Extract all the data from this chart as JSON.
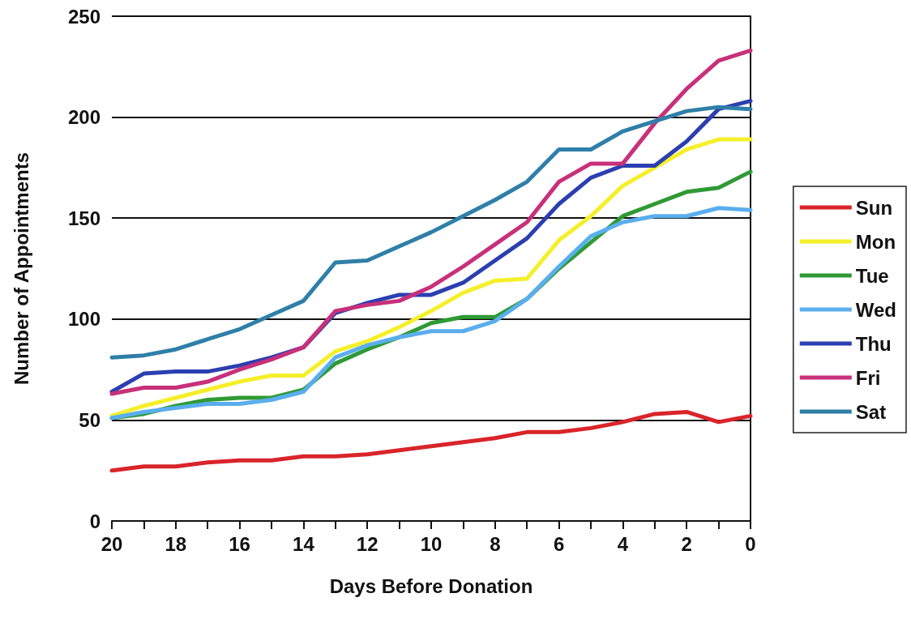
{
  "chart_data": {
    "type": "line",
    "xlabel": "Days Before Donation",
    "ylabel": "Number of Appointments",
    "x": [
      20,
      19,
      18,
      17,
      16,
      15,
      14,
      13,
      12,
      11,
      10,
      9,
      8,
      7,
      6,
      5,
      4,
      3,
      2,
      1,
      0
    ],
    "xlim": [
      20,
      0
    ],
    "xticks": [
      20,
      {
        "value": 19,
        "label": null
      },
      18,
      {
        "value": 17,
        "label": null
      },
      16,
      {
        "value": 15,
        "label": null
      },
      14,
      {
        "value": 13,
        "label": null
      },
      12,
      {
        "value": 11,
        "label": null
      },
      10,
      {
        "value": 9,
        "label": null
      },
      8,
      {
        "value": 7,
        "label": null
      },
      6,
      {
        "value": 5,
        "label": null
      },
      4,
      {
        "value": 3,
        "label": null
      },
      2,
      {
        "value": 1,
        "label": null
      },
      0
    ],
    "ylim": [
      0,
      250
    ],
    "yticks": [
      0,
      50,
      100,
      150,
      200,
      250
    ],
    "grid": "y",
    "legend": "right",
    "marker": "none",
    "line_style": "solid",
    "series": [
      {
        "name": "Sun",
        "color": "#d9252a",
        "values": [
          25,
          27,
          27,
          29,
          30,
          30,
          32,
          32,
          33,
          35,
          37,
          39,
          41,
          44,
          44,
          46,
          49,
          53,
          54,
          49,
          52
        ]
      },
      {
        "name": "Mon",
        "color": "#f5ef2a",
        "values": [
          52,
          57,
          61,
          65,
          69,
          72,
          72,
          84,
          89,
          96,
          104,
          113,
          119,
          120,
          139,
          151,
          166,
          175,
          184,
          189,
          189
        ]
      },
      {
        "name": "Tue",
        "color": "#2f9a35",
        "values": [
          51,
          53,
          57,
          60,
          61,
          61,
          65,
          78,
          85,
          91,
          98,
          101,
          101,
          110,
          125,
          138,
          151,
          157,
          163,
          165,
          173
        ]
      },
      {
        "name": "Wed",
        "color": "#5aaeee",
        "values": [
          51,
          54,
          56,
          58,
          58,
          60,
          64,
          81,
          87,
          91,
          94,
          94,
          99,
          110,
          126,
          141,
          148,
          151,
          151,
          155,
          154
        ]
      },
      {
        "name": "Thu",
        "color": "#2b3fb0",
        "values": [
          64,
          73,
          74,
          74,
          77,
          81,
          86,
          103,
          108,
          112,
          112,
          118,
          129,
          140,
          157,
          170,
          176,
          176,
          188,
          204,
          208
        ]
      },
      {
        "name": "Fri",
        "color": "#c8307a",
        "values": [
          63,
          66,
          66,
          69,
          75,
          80,
          86,
          104,
          107,
          109,
          116,
          126,
          137,
          148,
          168,
          177,
          177,
          197,
          214,
          228,
          233
        ]
      },
      {
        "name": "Sat",
        "color": "#2f7fa8",
        "values": [
          81,
          82,
          85,
          90,
          95,
          102,
          109,
          128,
          129,
          136,
          143,
          151,
          159,
          168,
          184,
          184,
          193,
          198,
          203,
          205,
          204
        ]
      }
    ]
  }
}
